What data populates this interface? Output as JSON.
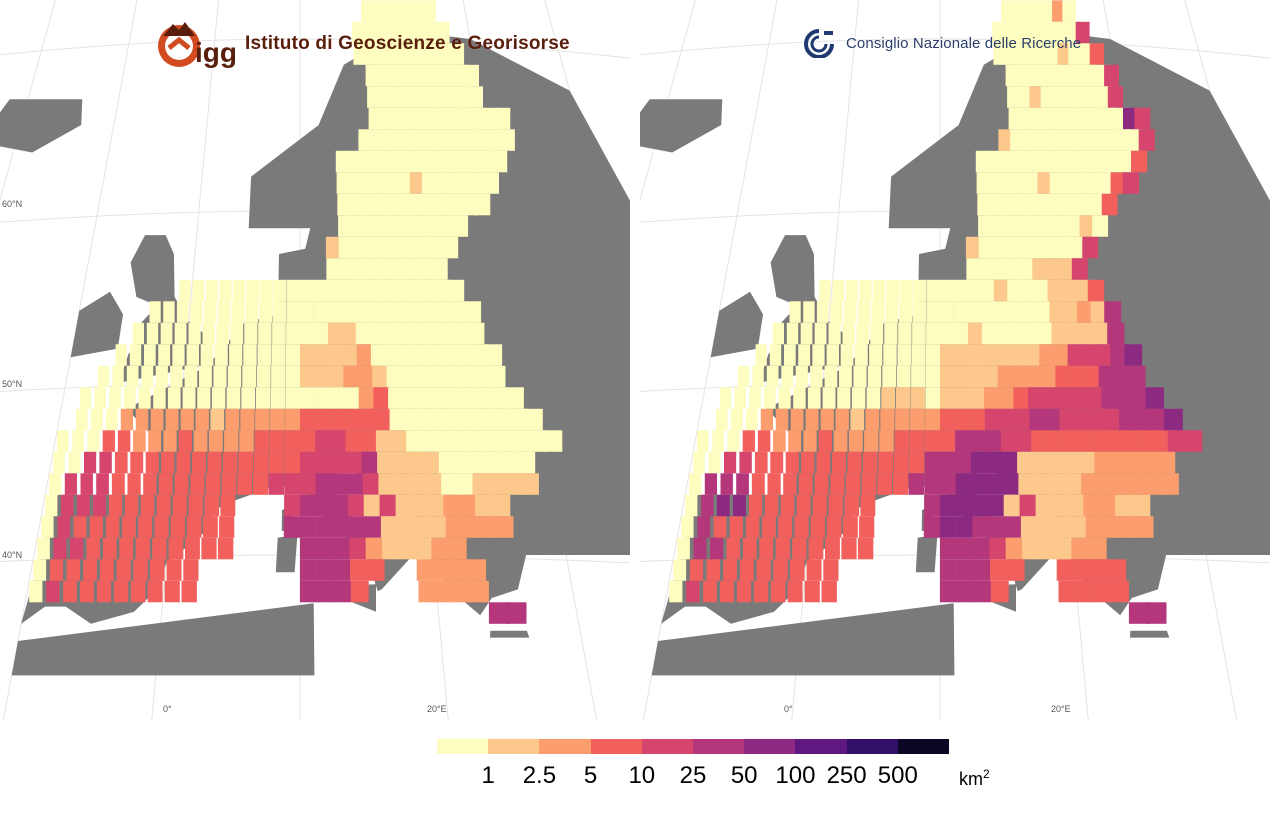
{
  "logos": {
    "left": {
      "short": "igg",
      "text": "Istituto di Geoscienze e Georisorse"
    },
    "right": {
      "text": "Consiglio Nazionale delle Ricerche"
    }
  },
  "axes": {
    "latitude_labels": [
      "60°N",
      "50°N",
      "40°N"
    ],
    "longitude_labels": [
      "0°",
      "20°E"
    ]
  },
  "legend": {
    "title_unit": "km",
    "title_exponent": "2",
    "ticks": [
      "1",
      "2.5",
      "5",
      "10",
      "25",
      "50",
      "100",
      "250",
      "500"
    ],
    "colors": [
      "#fcfdbf",
      "#fcc88c",
      "#fc9d6e",
      "#f1605d",
      "#d5456d",
      "#b3377a",
      "#8c2981",
      "#5f187f",
      "#331067",
      "#0b0724",
      "#000004"
    ]
  },
  "colors": {
    "land_no_data": "#7a7a7a",
    "graticule": "#e4e4e4",
    "border": "#e0e0e0"
  },
  "maps": {
    "left": {
      "grid_origin_lon": -10,
      "grid_origin_lat": 36,
      "cell_size_deg": 1,
      "rows": [
        "......................7777777......",
        ".....................777777777.....",
        ".....................7777777777....",
        "......................7777777777...",
        "......................7777777777...",
        "......................777777777777.",
        ".....................7777777777777.",
        "...................77777777777777..",
        "...................7777776777777...",
        "...................777777777777....",
        "...................7777777777......",
        "..................6777777777.......",
        "..................777777777........",
        ".......777777777777777777777.......",
        ".....777777777777777777777777......",
        "....7777777777777766777777777......",
        "...777777777777766665777777777.....",
        "..7777777777777766655677777777.....",
        ".777777777777777777754777777777....",
        ".7775555556555554444447777777777...",
        "777445554555544443344667777777777..",
        "7733444444444444333326666777777....",
        "7333444444444433322236666776666....",
        "833344444444...32223636665566......",
        "834444444444...22222266665555......",
        "733444444444....2223566655.........",
        "7444444444......22244..5555........",
        "7344444444......2224...5555........",
        "...........................22......."
      ]
    },
    "right": {
      "grid_origin_lon": -10,
      "grid_origin_lat": 36,
      "cell_size_deg": 1,
      "rows": [
        "......................7777757......",
        ".....................777777773.....",
        ".....................7777776774....",
        "......................7777777773...",
        "......................7767777773...",
        "......................777777777713.",
        ".....................6777777777773.",
        "...................77777777777774..",
        "...................7777767777743...",
        "...................77777777774.....",
        "...................7777777767......",
        "..................6777777773.......",
        "..................777776663........",
        ".......777777777777767776664.......",
        ".....777777777777777777766562......",
        "....7777777777777767777766662......",
        "...777777777777766666665533321.....",
        "..7777777777777766665555444222.....",
        ".777777777776667666554333332221....",
        ".7775555556555554443332233332221...",
        "777445554555544442223344444444433..",
        "7733444444444442221116666655555....",
        "7222444444444422211116666555555....",
        "821144444444...21111636665566......",
        "824444444444...21122266665555......",
        "722444444444....2223566655.........",
        "7444444444......22244..4444........",
        "7344444444......2224...4444........",
        "...........................22......."
      ]
    }
  }
}
